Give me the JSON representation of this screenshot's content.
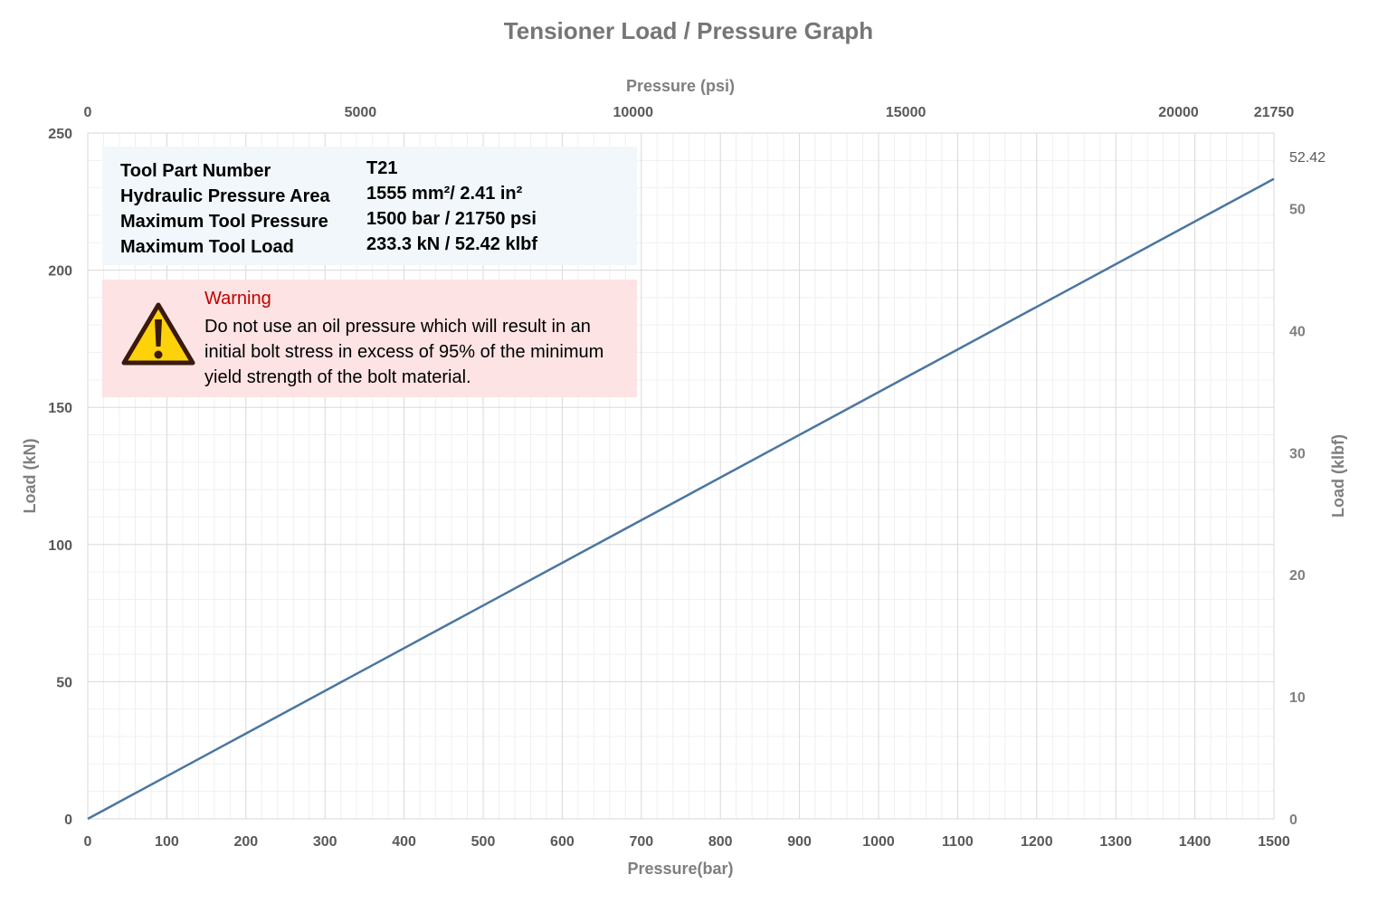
{
  "chart_data": {
    "type": "line",
    "title": "Tensioner Load / Pressure Graph",
    "xlabel": "Pressure(bar)",
    "x2label": "Pressure (psi)",
    "ylabel": "Load (kN)",
    "y2label": "Load (klbf)",
    "xlim": [
      0,
      1500
    ],
    "ylim": [
      0,
      250
    ],
    "x_ticks": [
      0,
      100,
      200,
      300,
      400,
      500,
      600,
      700,
      800,
      900,
      1000,
      1100,
      1200,
      1300,
      1400,
      1500
    ],
    "y_ticks": [
      0,
      50,
      100,
      150,
      200,
      250
    ],
    "x2lim": [
      0,
      21750
    ],
    "x2_ticks": [
      0,
      5000,
      10000,
      15000,
      20000,
      21750
    ],
    "y2lim": [
      0,
      56.2
    ],
    "y2_ticks": [
      0,
      10,
      20,
      30,
      40,
      50
    ],
    "y2_end_label": "52.42",
    "grid": true,
    "series": [
      {
        "x": [
          0,
          1500
        ],
        "y": [
          0,
          233.3
        ],
        "color": "#4a76a0"
      }
    ]
  },
  "info_box": {
    "rows": [
      {
        "label": "Tool Part Number",
        "value": "T21"
      },
      {
        "label": "Hydraulic Pressure Area",
        "value": "1555 mm²/ 2.41 in²"
      },
      {
        "label": "Maximum Tool Pressure",
        "value": "1500 bar / 21750 psi"
      },
      {
        "label": "Maximum Tool Load",
        "value": "233.3 kN / 52.42 klbf"
      }
    ]
  },
  "warning": {
    "title": "Warning",
    "text": "Do not use an oil pressure which will result in an initial bolt stress in excess of 95% of the minimum yield strength of the bolt material.",
    "icon": "warning-triangle-icon",
    "title_color": "#c00000"
  }
}
